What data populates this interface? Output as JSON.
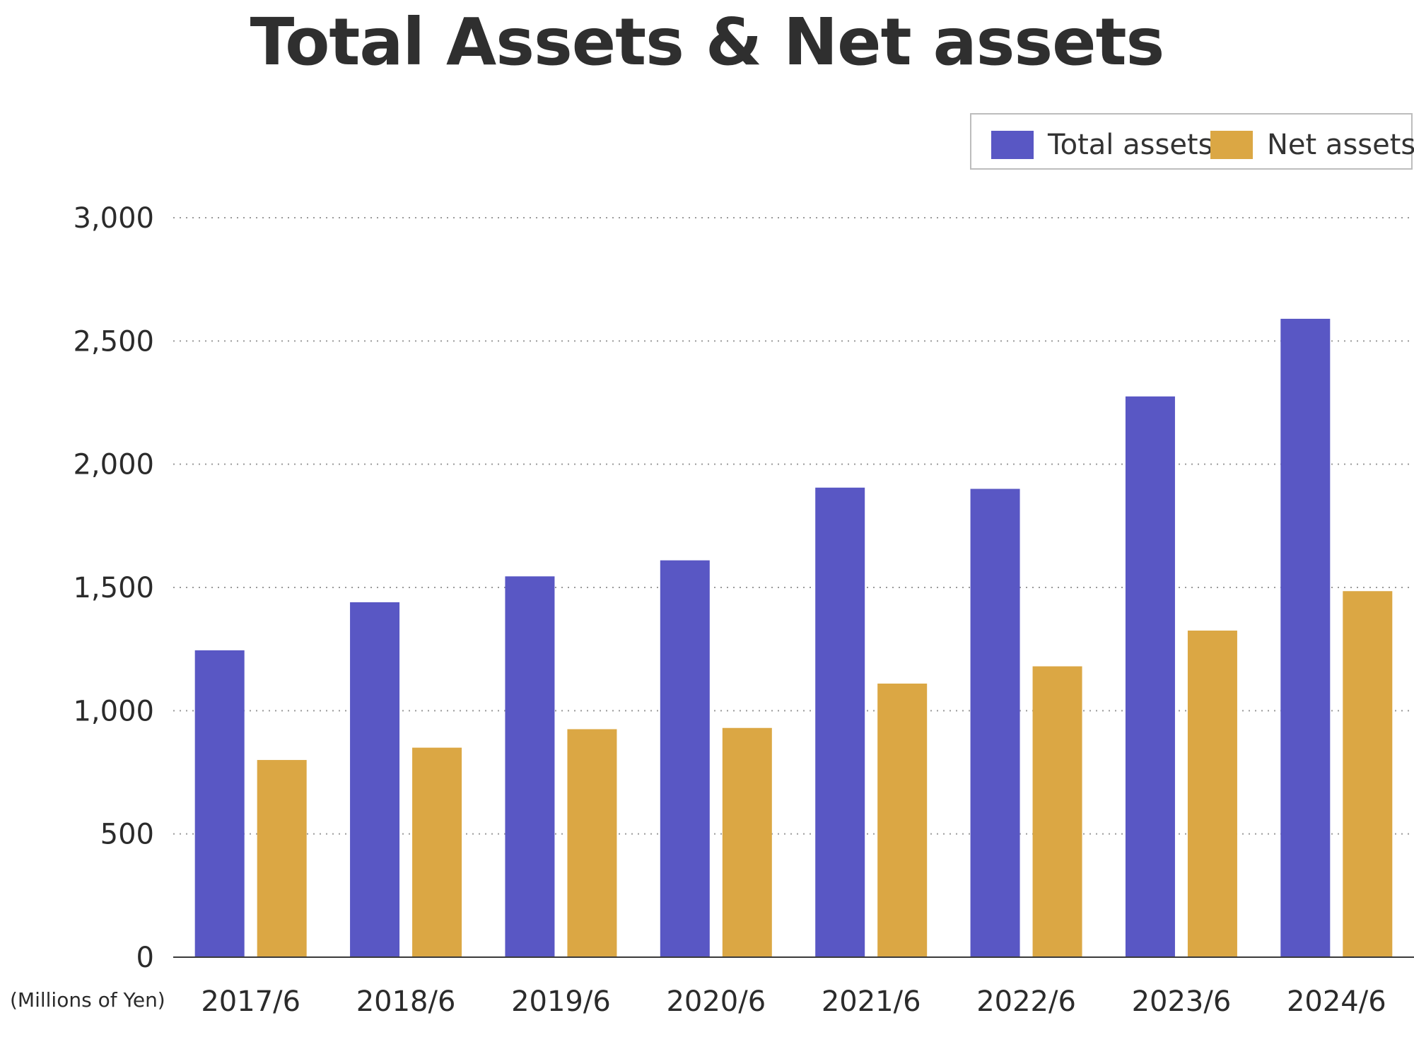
{
  "chart_data": {
    "type": "bar",
    "title": "Total Assets & Net assets",
    "unit_label": "(Millions of Yen)",
    "categories": [
      "2017/6",
      "2018/6",
      "2019/6",
      "2020/6",
      "2021/6",
      "2022/6",
      "2023/6",
      "2024/6"
    ],
    "series": [
      {
        "name": "Total assets",
        "color": "#5957c4",
        "values": [
          1245,
          1440,
          1545,
          1610,
          1905,
          1900,
          2275,
          2590
        ]
      },
      {
        "name": "Net assets",
        "color": "#dba744",
        "values": [
          800,
          850,
          925,
          930,
          1110,
          1180,
          1325,
          1485
        ]
      }
    ],
    "yticks": [
      "0",
      "500",
      "1,000",
      "1,500",
      "2,000",
      "2,500",
      "3,000"
    ],
    "ylim": [
      0,
      3000
    ],
    "grid": "dotted horizontal",
    "legend_position": "top-right"
  }
}
